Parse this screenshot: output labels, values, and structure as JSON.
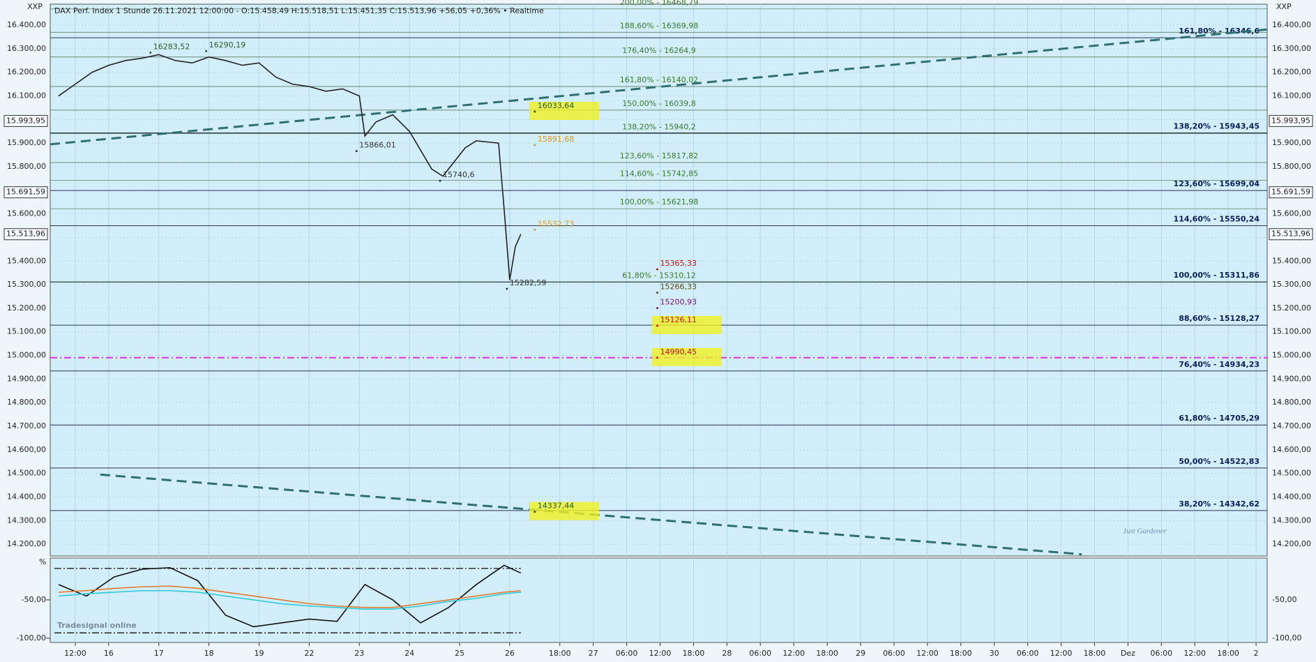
{
  "chart_data": [
    {
      "type": "line",
      "title": "DAX Perf. Index 1 Stunde 26.11.2021 12:00:00 - O:15.458,49 H:15.518,51 L:15.451,35 C:15.513,96 +56,05 +0,36% • Realtime",
      "axis_corner_labels": [
        "XXP",
        "XXP"
      ],
      "watermark": "Just Gardener",
      "ylim": [
        14150,
        16489
      ],
      "yticks": [
        {
          "value": 14200,
          "label": "14.200,00"
        },
        {
          "value": 14300,
          "label": "14.300,00"
        },
        {
          "value": 14400,
          "label": "14.400,00"
        },
        {
          "value": 14500,
          "label": "14.500,00"
        },
        {
          "value": 14600,
          "label": "14.600,00"
        },
        {
          "value": 14700,
          "label": "14.700,00"
        },
        {
          "value": 14800,
          "label": "14.800,00"
        },
        {
          "value": 14900,
          "label": "14.900,00"
        },
        {
          "value": 15000,
          "label": "15.000,00"
        },
        {
          "value": 15100,
          "label": "15.100,00"
        },
        {
          "value": 15200,
          "label": "15.200,00"
        },
        {
          "value": 15300,
          "label": "15.300,00"
        },
        {
          "value": 15400,
          "label": "15.400,00"
        },
        {
          "value": 15500,
          "label": "15.500,00"
        },
        {
          "value": 15600,
          "label": "15.600,00"
        },
        {
          "value": 15700,
          "label": "15.700,00"
        },
        {
          "value": 15800,
          "label": "15.800,00"
        },
        {
          "value": 15900,
          "label": "15.900,00"
        },
        {
          "value": 16000,
          "label": "16.000,00"
        },
        {
          "value": 16100,
          "label": "16.100,00"
        },
        {
          "value": 16200,
          "label": "16.200,00"
        },
        {
          "value": 16300,
          "label": "16.300,00"
        },
        {
          "value": 16400,
          "label": "16.400,00"
        }
      ],
      "xlim": [
        -1.5,
        217
      ],
      "xticks": [
        {
          "value": 3,
          "label": "12:00"
        },
        {
          "value": 9,
          "label": "16"
        },
        {
          "value": 18,
          "label": "17"
        },
        {
          "value": 27,
          "label": "18"
        },
        {
          "value": 36,
          "label": "19"
        },
        {
          "value": 45,
          "label": "22"
        },
        {
          "value": 54,
          "label": "23"
        },
        {
          "value": 63,
          "label": "24"
        },
        {
          "value": 72,
          "label": "25"
        },
        {
          "value": 81,
          "label": "26"
        },
        {
          "value": 90,
          "label": "18:00"
        },
        {
          "value": 96,
          "label": "27"
        },
        {
          "value": 102,
          "label": "06:00"
        },
        {
          "value": 108,
          "label": "12:00"
        },
        {
          "value": 114,
          "label": "18:00"
        },
        {
          "value": 120,
          "label": "28"
        },
        {
          "value": 126,
          "label": "06:00"
        },
        {
          "value": 132,
          "label": "12:00"
        },
        {
          "value": 138,
          "label": "18:00"
        },
        {
          "value": 144,
          "label": "29"
        },
        {
          "value": 150,
          "label": "06:00"
        },
        {
          "value": 156,
          "label": "12:00"
        },
        {
          "value": 162,
          "label": "18:00"
        },
        {
          "value": 168,
          "label": "30"
        },
        {
          "value": 174,
          "label": "06:00"
        },
        {
          "value": 180,
          "label": "12:00"
        },
        {
          "value": 186,
          "label": "18:00"
        },
        {
          "value": 192,
          "label": "Dez"
        },
        {
          "value": 198,
          "label": "06:00"
        },
        {
          "value": 204,
          "label": "12:00"
        },
        {
          "value": 210,
          "label": "18:00"
        },
        {
          "value": 215,
          "label": "2"
        }
      ],
      "grid": true,
      "series": [
        {
          "color": "#222222",
          "x": [
            0,
            3,
            6,
            9,
            12,
            15,
            18,
            21,
            24,
            27,
            30,
            33,
            36,
            39,
            42,
            45,
            48,
            51,
            54,
            55,
            57,
            60,
            63,
            65,
            67,
            69,
            71,
            73,
            75,
            77,
            79,
            80,
            81,
            82,
            83
          ],
          "values": [
            16100,
            16150,
            16200,
            16230,
            16250,
            16260,
            16275,
            16250,
            16240,
            16265,
            16250,
            16230,
            16240,
            16180,
            16150,
            16140,
            16120,
            16130,
            16100,
            15930,
            15990,
            16020,
            15950,
            15870,
            15790,
            15760,
            15820,
            15880,
            15910,
            15905,
            15900,
            15620,
            15320,
            15460,
            15514
          ]
        }
      ],
      "trendlines": [
        {
          "color": "#2f6f73",
          "x": [
            -1.5,
            217
          ],
          "y": [
            15895,
            16382
          ]
        },
        {
          "color": "#2f6f73",
          "x": [
            7.5,
            183.7
          ],
          "y": [
            14495,
            14157
          ]
        }
      ],
      "fib_right": {
        "color": "#0b1e5a",
        "levels": [
          {
            "value": 16346.6,
            "label": "161,80% - 16346,6"
          },
          {
            "value": 15943.45,
            "label": "138,20% - 15943,45"
          },
          {
            "value": 15699.04,
            "label": "123,60% - 15699,04"
          },
          {
            "value": 15550.24,
            "label": "114,60% - 15550,24"
          },
          {
            "value": 15311.86,
            "label": "100,00% - 15311,86"
          },
          {
            "value": 15128.27,
            "label": "88,60% - 15128,27"
          },
          {
            "value": 14934.23,
            "label": "76,40% - 14934,23"
          },
          {
            "value": 14705.29,
            "label": "61,80% - 14705,29"
          },
          {
            "value": 14522.83,
            "label": "50,00% - 14522,83"
          },
          {
            "value": 14342.62,
            "label": "38,20% - 14342,62"
          }
        ]
      },
      "fib_mid": {
        "color": "#3c7a2c",
        "levels": [
          {
            "value": 16468.79,
            "label": "200,00% - 16468,79"
          },
          {
            "value": 16369.98,
            "label": "188,60% - 16369,98"
          },
          {
            "value": 16264.9,
            "label": "176,40% - 16264,9"
          },
          {
            "value": 16140.02,
            "label": "161,80% - 16140,02"
          },
          {
            "value": 16039.8,
            "label": "150,00% - 16039,8"
          },
          {
            "value": 15940.2,
            "label": "138,20% - 15940,2"
          },
          {
            "value": 15817.82,
            "label": "123,60% - 15817,82"
          },
          {
            "value": 15742.85,
            "label": "114,60% - 15742,85"
          },
          {
            "value": 15621.98,
            "label": "100,00% - 15621,98"
          },
          {
            "value": 15310.12,
            "label": "61,80% - 15310,12"
          }
        ]
      },
      "annotations": [
        {
          "text": "16283,52",
          "value": 16283.52,
          "x": 17,
          "color": "#2a5a2a"
        },
        {
          "text": "16290,19",
          "value": 16290.19,
          "x": 27,
          "color": "#2a5a2a"
        },
        {
          "text": "15866,01",
          "value": 15866.01,
          "x": 54,
          "color": "#333333"
        },
        {
          "text": "15740,6",
          "value": 15740.6,
          "x": 69,
          "color": "#333333"
        },
        {
          "text": "15282,59",
          "value": 15282.59,
          "x": 81,
          "color": "#333333"
        },
        {
          "text": "16033,64",
          "value": 16033.64,
          "x": 86,
          "color": "#2a5a2a",
          "highlight": true
        },
        {
          "text": "15891,68",
          "value": 15891.68,
          "x": 86,
          "color": "#e09a20"
        },
        {
          "text": "15532,73",
          "value": 15532.73,
          "x": 86,
          "color": "#e09a20"
        },
        {
          "text": "14337,44",
          "value": 14337.44,
          "x": 86,
          "color": "#2a5a2a",
          "highlight": true
        },
        {
          "text": "15365,33",
          "value": 15365.33,
          "x": 108,
          "color": "#d01010"
        },
        {
          "text": "15266,33",
          "value": 15266.33,
          "x": 108,
          "color": "#5a4a10"
        },
        {
          "text": "15200,93",
          "value": 15200.93,
          "x": 108,
          "color": "#801080"
        },
        {
          "text": "15126,11",
          "value": 15126.11,
          "x": 108,
          "color": "#d01010",
          "highlight": true
        },
        {
          "text": "14990,45",
          "value": 14990.45,
          "x": 108,
          "color": "#d01010",
          "highlight": true,
          "line": "#e030e0"
        }
      ],
      "price_markers": [
        {
          "value": 15993.95,
          "label": "15.993,95"
        },
        {
          "value": 15691.59,
          "label": "15.691,59"
        },
        {
          "value": 15513.96,
          "label": "15.513,96"
        }
      ]
    },
    {
      "type": "line",
      "unit_label": "%",
      "logo": "Tradesignal online",
      "ylim": [
        -105.5,
        4.5
      ],
      "yticks": [
        {
          "value": -50,
          "label": "-50,00"
        },
        {
          "value": -100,
          "label": "-100,00"
        }
      ],
      "levels": [
        -9,
        -93
      ],
      "series": [
        {
          "color": "#111111",
          "x": [
            0,
            5,
            10,
            15,
            20,
            25,
            30,
            35,
            40,
            45,
            50,
            55,
            60,
            65,
            70,
            75,
            80,
            83
          ],
          "values": [
            -30,
            -45,
            -20,
            -10,
            -8,
            -25,
            -70,
            -85,
            -80,
            -75,
            -78,
            -30,
            -50,
            -80,
            -60,
            -30,
            -5,
            -15
          ]
        },
        {
          "color": "#e07a30",
          "x": [
            0,
            5,
            10,
            15,
            20,
            25,
            30,
            35,
            40,
            45,
            50,
            55,
            60,
            65,
            70,
            75,
            80,
            83
          ],
          "values": [
            -40,
            -38,
            -35,
            -33,
            -32,
            -35,
            -40,
            -45,
            -50,
            -55,
            -58,
            -60,
            -60,
            -55,
            -50,
            -45,
            -40,
            -38
          ]
        },
        {
          "color": "#30c8d8",
          "x": [
            0,
            5,
            10,
            15,
            20,
            25,
            30,
            35,
            40,
            45,
            50,
            55,
            60,
            65,
            70,
            75,
            80,
            83
          ],
          "values": [
            -45,
            -42,
            -40,
            -38,
            -38,
            -40,
            -45,
            -50,
            -55,
            -58,
            -60,
            -62,
            -62,
            -58,
            -52,
            -48,
            -42,
            -40
          ]
        }
      ]
    }
  ]
}
